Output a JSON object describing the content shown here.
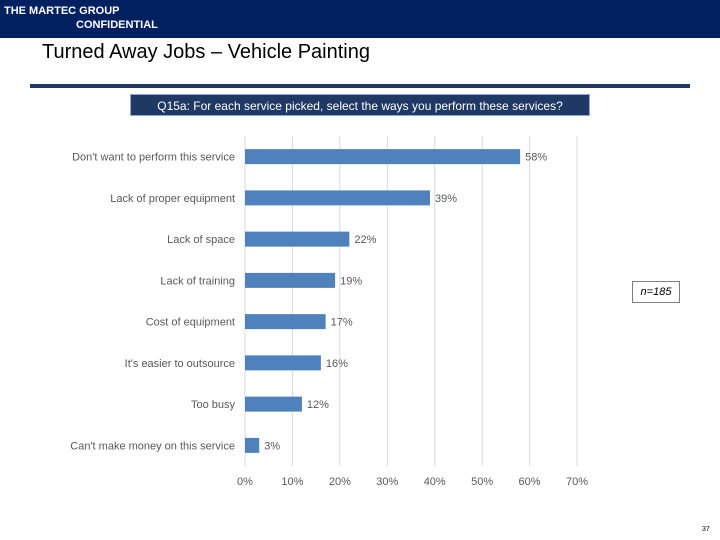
{
  "header": {
    "brand_line1": "THE MARTEC GROUP",
    "brand_line2": "CONFIDENTIAL",
    "title": "Turned Away Jobs – Vehicle Painting",
    "question": "Q15a: For each service picked, select the ways you perform these services?",
    "sample_size": "n=185",
    "page_number": "37"
  },
  "colors": {
    "header_bg": "#002060",
    "bar": "#4f81bd",
    "label": "#595959",
    "grid": "#d9d9d9"
  },
  "chart_data": {
    "type": "bar",
    "orientation": "horizontal",
    "title": "",
    "xlabel": "",
    "ylabel": "",
    "categories": [
      "Don't want to perform this service",
      "Lack of proper equipment",
      "Lack of space",
      "Lack of training",
      "Cost of equipment",
      "It's easier to outsource",
      "Too busy",
      "Can't make money on this service"
    ],
    "values": [
      58,
      39,
      22,
      19,
      17,
      16,
      12,
      3
    ],
    "value_labels": [
      "58%",
      "39%",
      "22%",
      "19%",
      "17%",
      "16%",
      "12%",
      "3%"
    ],
    "xlim": [
      0,
      70
    ],
    "ticks": [
      0,
      10,
      20,
      30,
      40,
      50,
      60,
      70
    ],
    "tick_labels": [
      "0%",
      "10%",
      "20%",
      "30%",
      "40%",
      "50%",
      "60%",
      "70%"
    ],
    "grid": true
  }
}
